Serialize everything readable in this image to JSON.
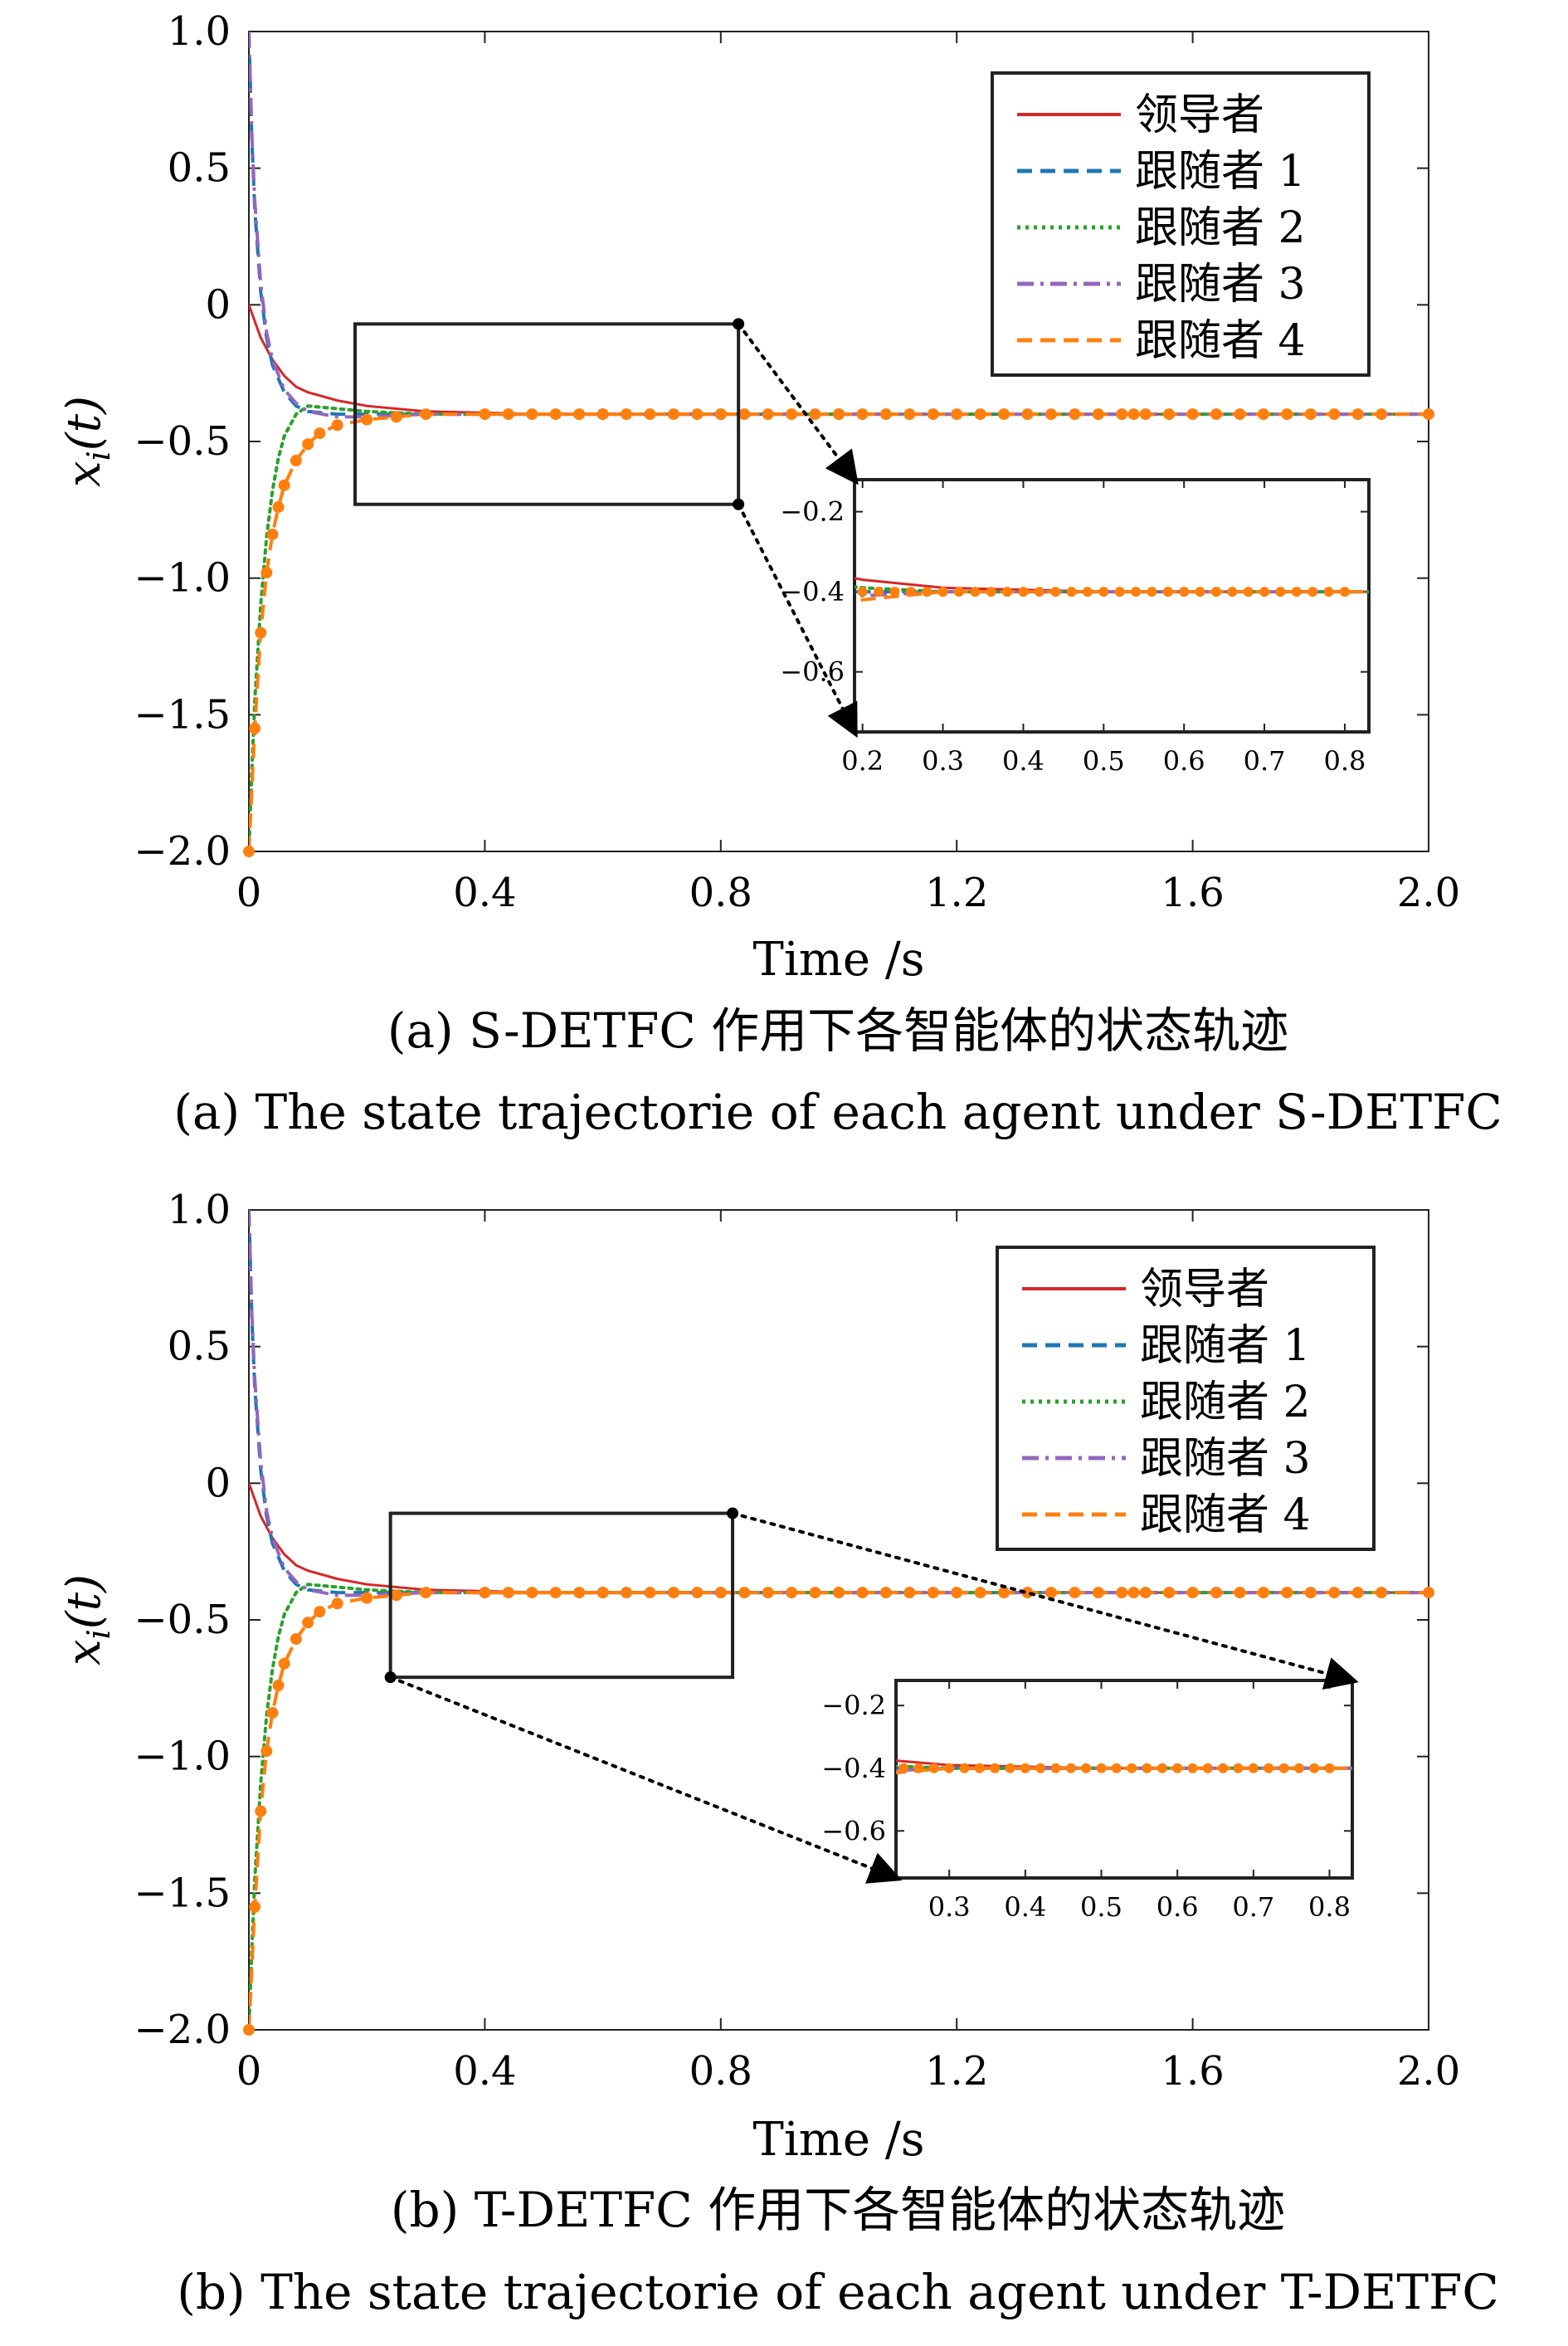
{
  "colors": {
    "leader": "#d62728",
    "follower1": "#1f77b4",
    "follower2": "#2ca02c",
    "follower3": "#9467bd",
    "follower4": "#ff7f0e"
  },
  "chart_data": [
    {
      "type": "line",
      "caption_cn": "(a) S-DETFC 作用下各智能体的状态轨迹",
      "caption_en": "(a) The state trajectorie of each agent under S-DETFC",
      "xlabel": "Time /s",
      "ylabel_main": "x",
      "ylabel_sub": "i",
      "ylabel_arg": "(t)",
      "xlim": [
        0,
        2.0
      ],
      "ylim": [
        -2.0,
        1.0
      ],
      "xticks": [
        0,
        0.4,
        0.8,
        1.2,
        1.6,
        2.0
      ],
      "xtick_labels": [
        "0",
        "0.4",
        "0.8",
        "1.2",
        "1.6",
        "2.0"
      ],
      "yticks": [
        1.0,
        0.5,
        0,
        -0.5,
        -1.0,
        -1.5,
        -2.0
      ],
      "ytick_labels": [
        "1.0",
        "0.5",
        "0",
        "−0.5",
        "−1.0",
        "−1.5",
        "−2.0"
      ],
      "legend": [
        "领导者",
        "跟随者 1",
        "跟随者 2",
        "跟随者 3",
        "跟随者 4"
      ],
      "legend_position": "top-right",
      "series": [
        {
          "name": "领导者",
          "style": "solid",
          "color": "#d62728",
          "x": [
            0,
            0.02,
            0.04,
            0.06,
            0.08,
            0.1,
            0.15,
            0.2,
            0.3,
            0.5,
            0.8,
            1.2,
            2.0
          ],
          "y": [
            0,
            -0.12,
            -0.2,
            -0.26,
            -0.3,
            -0.32,
            -0.35,
            -0.37,
            -0.39,
            -0.4,
            -0.4,
            -0.4,
            -0.4
          ]
        },
        {
          "name": "跟随者 1",
          "style": "dashed",
          "color": "#1f77b4",
          "x": [
            0,
            0.005,
            0.01,
            0.02,
            0.03,
            0.04,
            0.06,
            0.08,
            0.1,
            0.15,
            0.2,
            0.3,
            0.5,
            2.0
          ],
          "y": [
            1.0,
            0.6,
            0.35,
            0.05,
            -0.12,
            -0.22,
            -0.32,
            -0.37,
            -0.39,
            -0.4,
            -0.4,
            -0.4,
            -0.4,
            -0.4
          ]
        },
        {
          "name": "跟随者 2",
          "style": "dotted",
          "color": "#2ca02c",
          "x": [
            0,
            0.005,
            0.01,
            0.02,
            0.03,
            0.04,
            0.05,
            0.06,
            0.08,
            0.1,
            0.15,
            0.2,
            0.3,
            2.0
          ],
          "y": [
            -2.0,
            -1.7,
            -1.45,
            -1.1,
            -0.85,
            -0.68,
            -0.56,
            -0.48,
            -0.4,
            -0.37,
            -0.38,
            -0.39,
            -0.4,
            -0.4
          ]
        },
        {
          "name": "跟随者 3",
          "style": "dashdot",
          "color": "#9467bd",
          "x": [
            0,
            0.005,
            0.01,
            0.02,
            0.03,
            0.04,
            0.06,
            0.08,
            0.1,
            0.15,
            0.2,
            0.3,
            0.5,
            2.0
          ],
          "y": [
            1.0,
            0.62,
            0.38,
            0.08,
            -0.1,
            -0.2,
            -0.31,
            -0.36,
            -0.39,
            -0.41,
            -0.41,
            -0.4,
            -0.4,
            -0.4
          ]
        },
        {
          "name": "跟随者 4",
          "style": "dashed-markers",
          "color": "#ff7f0e",
          "x": [
            0,
            0.01,
            0.02,
            0.03,
            0.04,
            0.05,
            0.06,
            0.08,
            0.1,
            0.12,
            0.15,
            0.2,
            0.25,
            0.3,
            0.4,
            0.6,
            0.8,
            1.0,
            1.5,
            2.0
          ],
          "y": [
            -2.0,
            -1.55,
            -1.2,
            -0.98,
            -0.84,
            -0.74,
            -0.66,
            -0.57,
            -0.51,
            -0.47,
            -0.44,
            -0.42,
            -0.41,
            -0.4,
            -0.4,
            -0.4,
            -0.4,
            -0.4,
            -0.4,
            -0.4
          ]
        }
      ],
      "inset": {
        "xlim": [
          0.19,
          0.83
        ],
        "ylim": [
          -0.75,
          -0.12
        ],
        "xticks": [
          0.2,
          0.3,
          0.4,
          0.5,
          0.6,
          0.7,
          0.8
        ],
        "xtick_labels": [
          "0.2",
          "0.3",
          "0.4",
          "0.5",
          "0.6",
          "0.7",
          "0.8"
        ],
        "yticks": [
          -0.2,
          -0.4,
          -0.6
        ],
        "ytick_labels": [
          "−0.2",
          "−0.4",
          "−0.6"
        ],
        "zoom_box": {
          "x": [
            0.18,
            0.83
          ],
          "y": [
            -0.73,
            -0.07
          ]
        }
      }
    },
    {
      "type": "line",
      "caption_cn": "(b) T-DETFC 作用下各智能体的状态轨迹",
      "caption_en": "(b) The state trajectorie of each agent under T-DETFC",
      "xlabel": "Time /s",
      "ylabel_main": "x",
      "ylabel_sub": "i",
      "ylabel_arg": "(t)",
      "xlim": [
        0,
        2.0
      ],
      "ylim": [
        -2.0,
        1.0
      ],
      "xticks": [
        0,
        0.4,
        0.8,
        1.2,
        1.6,
        2.0
      ],
      "xtick_labels": [
        "0",
        "0.4",
        "0.8",
        "1.2",
        "1.6",
        "2.0"
      ],
      "yticks": [
        1.0,
        0.5,
        0,
        -0.5,
        -1.0,
        -1.5,
        -2.0
      ],
      "ytick_labels": [
        "1.0",
        "0.5",
        "0",
        "−0.5",
        "−1.0",
        "−1.5",
        "−2.0"
      ],
      "legend": [
        "领导者",
        "跟随者 1",
        "跟随者 2",
        "跟随者 3",
        "跟随者 4"
      ],
      "legend_position": "top-right",
      "series": [
        {
          "name": "领导者",
          "style": "solid",
          "color": "#d62728",
          "x": [
            0,
            0.02,
            0.04,
            0.06,
            0.08,
            0.1,
            0.15,
            0.2,
            0.3,
            0.5,
            0.8,
            1.2,
            2.0
          ],
          "y": [
            0,
            -0.12,
            -0.2,
            -0.26,
            -0.3,
            -0.32,
            -0.35,
            -0.37,
            -0.39,
            -0.4,
            -0.4,
            -0.4,
            -0.4
          ]
        },
        {
          "name": "跟随者 1",
          "style": "dashed",
          "color": "#1f77b4",
          "x": [
            0,
            0.005,
            0.01,
            0.02,
            0.03,
            0.04,
            0.06,
            0.08,
            0.1,
            0.15,
            0.2,
            0.3,
            0.5,
            2.0
          ],
          "y": [
            1.0,
            0.6,
            0.35,
            0.05,
            -0.12,
            -0.22,
            -0.32,
            -0.37,
            -0.39,
            -0.4,
            -0.4,
            -0.4,
            -0.4,
            -0.4
          ]
        },
        {
          "name": "跟随者 2",
          "style": "dotted",
          "color": "#2ca02c",
          "x": [
            0,
            0.005,
            0.01,
            0.02,
            0.03,
            0.04,
            0.05,
            0.06,
            0.08,
            0.1,
            0.15,
            0.2,
            0.3,
            2.0
          ],
          "y": [
            -2.0,
            -1.7,
            -1.45,
            -1.1,
            -0.85,
            -0.68,
            -0.56,
            -0.48,
            -0.4,
            -0.37,
            -0.38,
            -0.39,
            -0.4,
            -0.4
          ]
        },
        {
          "name": "跟随者 3",
          "style": "dashdot",
          "color": "#9467bd",
          "x": [
            0,
            0.005,
            0.01,
            0.02,
            0.03,
            0.04,
            0.06,
            0.08,
            0.1,
            0.15,
            0.2,
            0.3,
            0.5,
            2.0
          ],
          "y": [
            1.0,
            0.62,
            0.38,
            0.08,
            -0.1,
            -0.2,
            -0.31,
            -0.36,
            -0.39,
            -0.41,
            -0.41,
            -0.4,
            -0.4,
            -0.4
          ]
        },
        {
          "name": "跟随者 4",
          "style": "dashed-markers",
          "color": "#ff7f0e",
          "x": [
            0,
            0.01,
            0.02,
            0.03,
            0.04,
            0.05,
            0.06,
            0.08,
            0.1,
            0.12,
            0.15,
            0.2,
            0.25,
            0.3,
            0.4,
            0.6,
            0.8,
            1.0,
            1.5,
            2.0
          ],
          "y": [
            -2.0,
            -1.55,
            -1.2,
            -0.98,
            -0.84,
            -0.74,
            -0.66,
            -0.57,
            -0.51,
            -0.47,
            -0.44,
            -0.42,
            -0.41,
            -0.4,
            -0.4,
            -0.4,
            -0.4,
            -0.4,
            -0.4,
            -0.4
          ]
        }
      ],
      "inset": {
        "xlim": [
          0.23,
          0.83
        ],
        "ylim": [
          -0.75,
          -0.12
        ],
        "xticks": [
          0.3,
          0.4,
          0.5,
          0.6,
          0.7,
          0.8
        ],
        "xtick_labels": [
          "0.3",
          "0.4",
          "0.5",
          "0.6",
          "0.7",
          "0.8"
        ],
        "yticks": [
          -0.2,
          -0.4,
          -0.6
        ],
        "ytick_labels": [
          "−0.2",
          "−0.4",
          "−0.6"
        ],
        "zoom_box": {
          "x": [
            0.24,
            0.82
          ],
          "y": [
            -0.71,
            -0.11
          ]
        }
      }
    }
  ]
}
